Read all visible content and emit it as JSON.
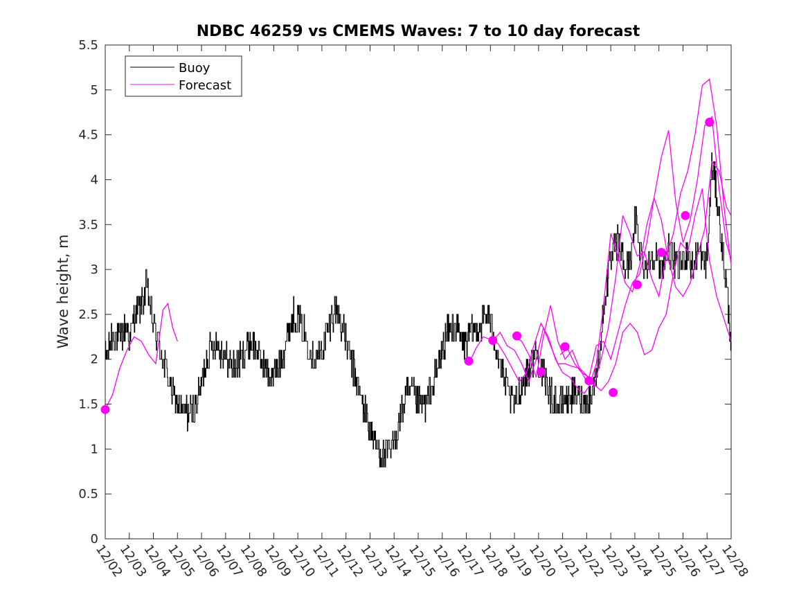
{
  "chart_data": {
    "type": "line",
    "title": "NDBC 46259 vs CMEMS Waves: 7 to 10 day forecast",
    "xlabel": "",
    "ylabel": "Wave height, m",
    "xlim": [
      0,
      26
    ],
    "ylim": [
      0,
      5.5
    ],
    "yticks": [
      0,
      0.5,
      1,
      1.5,
      2,
      2.5,
      3,
      3.5,
      4,
      4.5,
      5,
      5.5
    ],
    "ytick_labels": [
      "0",
      "0.5",
      "1",
      "1.5",
      "2",
      "2.5",
      "3",
      "3.5",
      "4",
      "4.5",
      "5",
      "5.5"
    ],
    "xtick_labels": [
      "12/02",
      "12/03",
      "12/04",
      "12/05",
      "12/06",
      "12/07",
      "12/08",
      "12/09",
      "12/10",
      "12/11",
      "12/12",
      "12/13",
      "12/14",
      "12/15",
      "12/16",
      "12/17",
      "12/18",
      "12/19",
      "12/20",
      "12/21",
      "12/22",
      "12/23",
      "12/24",
      "12/25",
      "12/26",
      "12/27",
      "12/28"
    ],
    "grid": false,
    "legend": {
      "position": "top-left",
      "entries": [
        "Buoy",
        "Forecast"
      ]
    },
    "colors": {
      "buoy": "#000000",
      "forecast": "#ff00ff"
    },
    "buoy": {
      "name": "Buoy",
      "x": [
        0,
        0.3,
        0.6,
        0.9,
        1.0,
        1.2,
        1.5,
        1.7,
        2.0,
        2.2,
        2.5,
        2.8,
        3.0,
        3.2,
        3.3,
        3.6,
        3.9,
        4.2,
        4.5,
        4.8,
        5.0,
        5.3,
        5.6,
        6.0,
        6.3,
        6.6,
        6.9,
        7.2,
        7.5,
        7.8,
        8.1,
        8.4,
        8.7,
        9.0,
        9.3,
        9.6,
        9.9,
        10.2,
        10.5,
        10.8,
        11.0,
        11.3,
        11.6,
        11.9,
        12.2,
        12.5,
        12.8,
        13.0,
        13.3,
        13.6,
        13.9,
        14.2,
        14.5,
        14.8,
        15.0,
        15.3,
        15.6,
        15.9,
        16.2,
        16.5,
        16.8,
        17.0,
        17.3,
        17.6,
        17.9,
        18.2,
        18.5,
        18.8,
        19.0,
        19.3,
        19.6,
        19.9,
        20.2,
        20.5,
        20.8,
        21.0,
        21.3,
        21.6,
        21.9,
        22.0,
        22.2,
        22.4,
        22.6,
        22.8,
        23.0,
        23.2,
        23.4,
        23.6,
        23.8,
        24.0,
        24.2,
        24.4,
        24.6,
        24.8,
        25.0,
        25.2,
        25.4,
        25.6,
        25.8,
        26.0
      ],
      "y": [
        2.0,
        2.3,
        2.2,
        2.4,
        2.2,
        2.5,
        2.6,
        2.8,
        2.4,
        2.2,
        1.9,
        1.6,
        1.5,
        1.4,
        1.4,
        1.4,
        1.6,
        2.0,
        2.2,
        2.1,
        2.0,
        1.9,
        2.0,
        2.2,
        2.1,
        1.9,
        1.8,
        1.9,
        2.2,
        2.5,
        2.4,
        2.2,
        2.0,
        2.1,
        2.4,
        2.6,
        2.3,
        2.0,
        1.7,
        1.4,
        1.2,
        1.0,
        0.9,
        1.0,
        1.3,
        1.6,
        1.6,
        1.5,
        1.5,
        1.7,
        2.0,
        2.3,
        2.4,
        2.2,
        2.2,
        2.3,
        2.4,
        2.5,
        2.2,
        1.8,
        1.6,
        1.5,
        1.7,
        1.9,
        2.1,
        1.8,
        1.6,
        1.5,
        1.5,
        1.6,
        1.6,
        1.5,
        1.6,
        2.0,
        2.8,
        3.1,
        3.3,
        3.0,
        3.2,
        3.6,
        3.3,
        3.0,
        3.1,
        3.2,
        3.0,
        3.1,
        3.2,
        3.1,
        3.0,
        3.1,
        3.2,
        3.0,
        3.2,
        3.1,
        3.1,
        4.2,
        3.8,
        3.3,
        2.8,
        2.2
      ],
      "noise": 0.18
    },
    "forecast": {
      "name": "Forecast",
      "segments": [
        {
          "x": [
            0.0,
            0.3,
            0.6,
            0.9,
            1.2,
            1.5,
            1.8,
            2.1,
            2.4,
            2.6,
            2.8,
            3.0
          ],
          "y": [
            1.45,
            1.6,
            1.9,
            2.1,
            2.25,
            2.2,
            2.05,
            1.95,
            2.55,
            2.62,
            2.35,
            2.2
          ]
        },
        {
          "x": [
            15.1,
            15.4,
            15.7,
            16.0,
            16.3,
            16.6,
            16.9,
            17.2,
            17.5,
            17.8,
            18.1,
            18.4,
            18.7,
            19.0,
            19.3,
            19.5,
            19.7,
            19.9,
            20.1,
            20.4,
            20.7,
            21.0,
            21.3,
            21.6,
            21.9,
            22.2,
            22.5,
            22.8,
            23.1,
            23.4,
            23.7,
            24.0,
            24.3,
            24.6,
            24.9,
            25.2,
            25.5,
            25.8,
            26.0
          ],
          "y": [
            1.95,
            2.12,
            2.25,
            2.22,
            2.18,
            2.05,
            1.9,
            1.75,
            1.85,
            2.15,
            2.4,
            2.25,
            2.0,
            1.85,
            1.8,
            1.72,
            1.65,
            1.62,
            1.7,
            1.95,
            2.6,
            3.4,
            3.15,
            2.85,
            2.75,
            3.05,
            3.5,
            3.8,
            4.25,
            4.55,
            3.75,
            3.3,
            3.55,
            4.0,
            4.6,
            4.7,
            3.9,
            3.3,
            3.1
          ]
        },
        {
          "x": [
            16.1,
            16.4,
            16.7,
            17.0,
            17.3,
            17.6,
            17.9,
            18.2,
            18.5,
            18.8,
            19.1,
            19.4,
            19.7,
            20.0,
            20.3,
            20.6,
            20.9,
            21.2,
            21.5,
            21.8,
            22.1,
            22.4,
            22.7,
            23.0,
            23.3,
            23.6,
            23.9,
            24.2,
            24.5,
            24.8,
            25.1,
            25.4,
            25.7,
            26.0
          ],
          "y": [
            2.2,
            2.3,
            2.15,
            2.1,
            1.95,
            1.75,
            2.0,
            2.35,
            2.15,
            1.95,
            1.95,
            1.92,
            1.9,
            1.82,
            1.7,
            2.0,
            2.35,
            2.9,
            3.6,
            3.4,
            3.15,
            3.2,
            2.9,
            2.7,
            3.15,
            3.4,
            3.85,
            4.1,
            4.5,
            5.05,
            5.12,
            4.6,
            3.7,
            3.05
          ]
        },
        {
          "x": [
            17.0,
            17.3,
            17.6,
            17.9,
            18.2,
            18.5,
            18.8,
            19.1,
            19.4,
            19.7,
            20.0,
            20.3,
            20.6,
            20.9,
            21.2,
            21.5,
            21.8,
            22.1,
            22.4,
            22.7,
            23.0,
            23.3,
            23.6,
            23.9,
            24.2,
            24.5,
            24.8,
            25.1,
            25.4,
            25.7,
            26.0
          ],
          "y": [
            2.25,
            2.2,
            2.05,
            1.8,
            2.25,
            2.6,
            2.2,
            2.0,
            2.1,
            1.9,
            1.75,
            1.72,
            1.65,
            1.75,
            1.95,
            2.3,
            2.4,
            2.3,
            2.05,
            2.1,
            2.35,
            2.5,
            2.95,
            3.3,
            3.2,
            3.6,
            3.9,
            3.1,
            2.7,
            2.45,
            2.2
          ]
        },
        {
          "x": [
            18.9,
            19.2,
            19.5,
            19.8,
            20.1,
            20.4,
            20.7,
            21.0,
            21.3,
            21.6,
            21.9,
            22.2,
            22.5,
            22.8,
            23.1,
            23.4,
            23.7,
            24.0,
            24.3,
            24.6,
            24.9,
            25.2,
            25.5,
            25.8,
            26.0
          ],
          "y": [
            2.05,
            2.12,
            1.95,
            1.85,
            1.8,
            2.15,
            2.2,
            2.0,
            2.3,
            2.6,
            2.85,
            2.95,
            3.3,
            3.8,
            3.55,
            3.1,
            2.8,
            2.7,
            2.85,
            3.15,
            3.45,
            4.2,
            4.1,
            3.7,
            3.6
          ]
        }
      ],
      "markers": {
        "x": [
          0.0,
          15.1,
          16.1,
          17.1,
          18.1,
          19.1,
          20.1,
          21.1,
          22.1,
          23.1,
          24.1,
          25.1
        ],
        "y": [
          1.44,
          1.98,
          2.21,
          2.26,
          1.86,
          2.14,
          1.76,
          1.63,
          2.83,
          3.19,
          3.6,
          4.64
        ]
      }
    }
  }
}
